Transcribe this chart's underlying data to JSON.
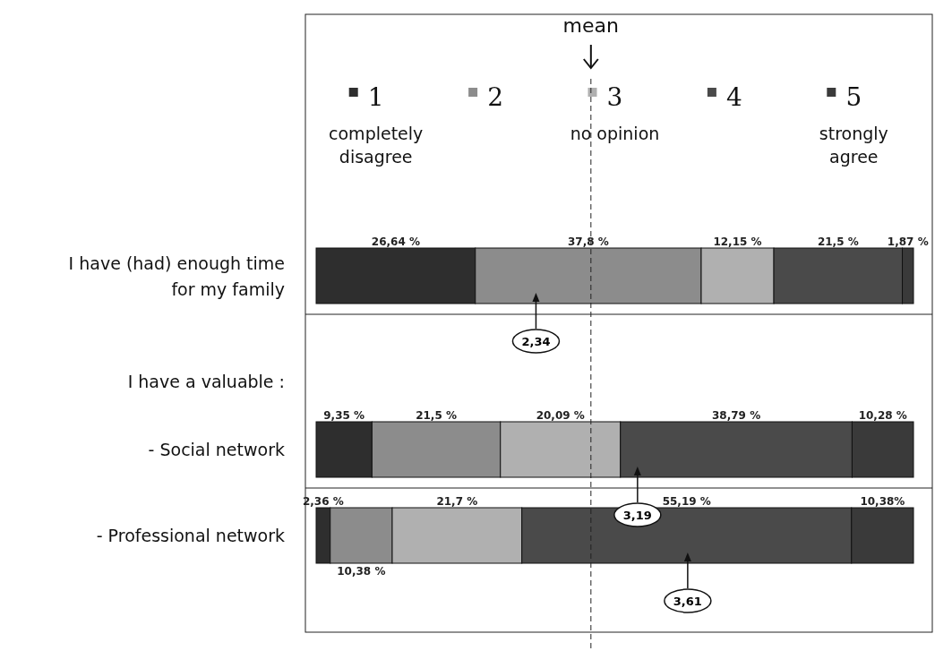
{
  "chart_data": {
    "type": "bar",
    "orientation": "horizontal",
    "stacked": true,
    "categories": [
      "I have (had) enough time for my family",
      "- Social network",
      "- Professional network"
    ],
    "series": [
      {
        "name": "1 completely disagree",
        "color": "#2e2e2e",
        "values": [
          26.64,
          9.35,
          2.36
        ],
        "value_labels": [
          "26,64 %",
          "9,35 %",
          "2,36 %"
        ]
      },
      {
        "name": "2",
        "color": "#8c8c8c",
        "values": [
          37.8,
          21.5,
          10.38
        ],
        "value_labels": [
          "37,8 %",
          "21,5 %",
          "10,38 %"
        ]
      },
      {
        "name": "3 no opinion",
        "color": "#b0b0b0",
        "values": [
          12.15,
          20.09,
          21.7
        ],
        "value_labels": [
          "12,15 %",
          "20,09 %",
          "21,7 %"
        ]
      },
      {
        "name": "4",
        "color": "#4a4a4a",
        "values": [
          21.5,
          38.79,
          55.19
        ],
        "value_labels": [
          "21,5 %",
          "38,79 %",
          "55,19 %"
        ]
      },
      {
        "name": "5 strongly agree",
        "color": "#3a3a3a",
        "values": [
          1.87,
          10.28,
          10.38
        ],
        "value_labels": [
          "1,87 %",
          "10,28 %",
          "10,38%"
        ]
      }
    ],
    "ref_lines": [
      {
        "axis": "x",
        "value": 46,
        "label": "mean",
        "line_style": "dashed",
        "color": "#222222"
      }
    ],
    "annotations": [
      "I have a valuable :",
      "2,34",
      "3,19",
      "3,61"
    ],
    "legend": "top",
    "grid": false
  }
}
